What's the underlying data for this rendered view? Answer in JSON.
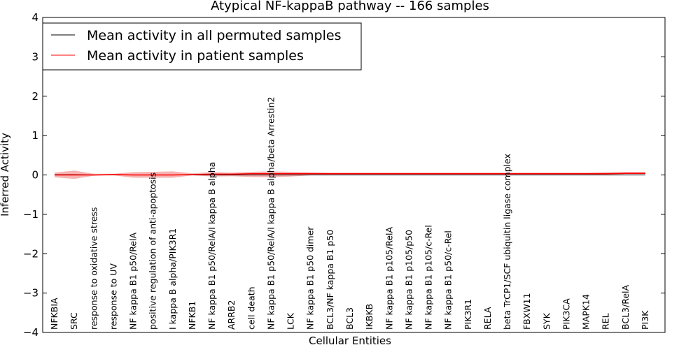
{
  "chart_data": {
    "type": "line",
    "title": "Atypical NF-kappaB pathway -- 166 samples",
    "xlabel": "Cellular Entities",
    "ylabel": "Inferred Activity",
    "ylim": [
      -4,
      4
    ],
    "yticks": [
      -4,
      -3,
      -2,
      -1,
      0,
      1,
      2,
      3,
      4
    ],
    "legend_position": "top-left",
    "categories": [
      "NFKBIA",
      "SRC",
      "response to oxidative stress",
      "response to UV",
      "NF kappa B1 p50/RelA",
      "positive regulation of anti-apoptosis",
      "I kappa B alpha/PIK3R1",
      "NFKB1",
      "NF kappa B1 p50/RelA/I kappa B alpha",
      "ARRB2",
      "cell death",
      "NF kappa B1 p50/RelA/I kappa B alpha/beta Arrestin2",
      "LCK",
      "NF kappa B1 p50 dimer",
      "BCL3/NF kappa B1 p50",
      "BCL3",
      "IKBKB",
      "NF kappa B1 p105/RelA",
      "NF kappa B1 p105/p50",
      "NF kappa B1 p105/c-Rel",
      "NF kappa B1 p50/c-Rel",
      "PIK3R1",
      "RELA",
      "beta TrCP1/SCF ubiquitin ligase complex",
      "FBXW11",
      "SYK",
      "PIK3CA",
      "MAPK14",
      "REL",
      "BCL3/RelA",
      "PI3K"
    ],
    "series": [
      {
        "name": "Mean activity in all permuted samples",
        "color": "#000000",
        "values": [
          0.01,
          0.01,
          0.0,
          0.0,
          0.0,
          0.0,
          0.0,
          0.0,
          0.0,
          0.0,
          0.0,
          0.0,
          0.0,
          0.0,
          0.0,
          0.0,
          0.0,
          0.0,
          0.0,
          0.0,
          0.0,
          0.0,
          0.0,
          0.0,
          0.0,
          0.0,
          0.0,
          0.0,
          0.0,
          0.0,
          0.0
        ]
      },
      {
        "name": "Mean activity in patient samples",
        "color": "#ff0000",
        "band_color": "#f08080",
        "values": [
          0.0,
          0.0,
          0.0,
          0.01,
          0.0,
          0.0,
          0.0,
          0.01,
          0.02,
          0.02,
          0.03,
          0.03,
          0.03,
          0.03,
          0.03,
          0.03,
          0.03,
          0.03,
          0.03,
          0.03,
          0.03,
          0.03,
          0.03,
          0.03,
          0.03,
          0.03,
          0.03,
          0.03,
          0.03,
          0.04,
          0.04
        ],
        "band_upper": [
          0.06,
          0.11,
          0.03,
          0.03,
          0.07,
          0.08,
          0.09,
          0.04,
          0.07,
          0.06,
          0.08,
          0.09,
          0.08,
          0.07,
          0.06,
          0.06,
          0.06,
          0.06,
          0.06,
          0.06,
          0.06,
          0.06,
          0.06,
          0.06,
          0.06,
          0.06,
          0.06,
          0.06,
          0.07,
          0.08,
          0.08
        ],
        "band_lower": [
          -0.06,
          -0.1,
          -0.02,
          -0.01,
          -0.07,
          -0.07,
          -0.07,
          -0.01,
          -0.04,
          -0.03,
          -0.05,
          -0.06,
          -0.04,
          -0.01,
          0.0,
          0.0,
          0.0,
          0.0,
          0.0,
          0.0,
          0.0,
          0.0,
          0.0,
          0.0,
          0.0,
          0.0,
          0.0,
          0.0,
          0.01,
          0.02,
          0.02
        ]
      }
    ]
  }
}
